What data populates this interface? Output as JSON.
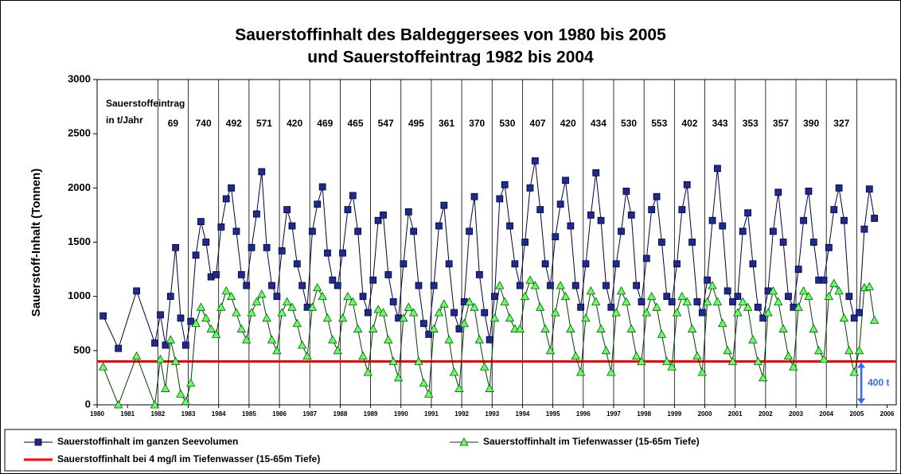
{
  "chart_data": {
    "type": "line",
    "title": [
      "Sauerstoffinhalt des Baldeggersees von 1980 bis 2005",
      "und Sauerstoffeintrag 1982 bis 2004"
    ],
    "ylabel": "Sauerstoff-Inhalt (Tonnen)",
    "xlim": [
      1980,
      2006.3
    ],
    "xticks": [
      1980,
      1981,
      1982,
      1983,
      1984,
      1985,
      1986,
      1987,
      1988,
      1989,
      1990,
      1991,
      1992,
      1993,
      1994,
      1995,
      1996,
      1997,
      1998,
      1999,
      2000,
      2001,
      2002,
      2003,
      2004,
      2005,
      2006
    ],
    "ylim": [
      0,
      3000
    ],
    "yticks": [
      0,
      500,
      1000,
      1500,
      2000,
      2500,
      3000
    ],
    "x": [
      1980.2,
      1980.7,
      1981.3,
      1981.9,
      1982.083,
      1982.25,
      1982.417,
      1982.583,
      1982.75,
      1982.917,
      1983.083,
      1983.25,
      1983.417,
      1983.583,
      1983.75,
      1983.917,
      1984.083,
      1984.25,
      1984.417,
      1984.583,
      1984.75,
      1984.917,
      1985.083,
      1985.25,
      1985.417,
      1985.583,
      1985.75,
      1985.917,
      1986.083,
      1986.25,
      1986.417,
      1986.583,
      1986.75,
      1986.917,
      1987.083,
      1987.25,
      1987.417,
      1987.583,
      1987.75,
      1987.917,
      1988.083,
      1988.25,
      1988.417,
      1988.583,
      1988.75,
      1988.917,
      1989.083,
      1989.25,
      1989.417,
      1989.583,
      1989.75,
      1989.917,
      1990.083,
      1990.25,
      1990.417,
      1990.583,
      1990.75,
      1990.917,
      1991.083,
      1991.25,
      1991.417,
      1991.583,
      1991.75,
      1991.917,
      1992.083,
      1992.25,
      1992.417,
      1992.583,
      1992.75,
      1992.917,
      1993.083,
      1993.25,
      1993.417,
      1993.583,
      1993.75,
      1993.917,
      1994.083,
      1994.25,
      1994.417,
      1994.583,
      1994.75,
      1994.917,
      1995.083,
      1995.25,
      1995.417,
      1995.583,
      1995.75,
      1995.917,
      1996.083,
      1996.25,
      1996.417,
      1996.583,
      1996.75,
      1996.917,
      1997.083,
      1997.25,
      1997.417,
      1997.583,
      1997.75,
      1997.917,
      1998.083,
      1998.25,
      1998.417,
      1998.583,
      1998.75,
      1998.917,
      1999.083,
      1999.25,
      1999.417,
      1999.583,
      1999.75,
      1999.917,
      2000.083,
      2000.25,
      2000.417,
      2000.583,
      2000.75,
      2000.917,
      2001.083,
      2001.25,
      2001.417,
      2001.583,
      2001.75,
      2001.917,
      2002.083,
      2002.25,
      2002.417,
      2002.583,
      2002.75,
      2002.917,
      2003.083,
      2003.25,
      2003.417,
      2003.583,
      2003.75,
      2003.917,
      2004.083,
      2004.25,
      2004.417,
      2004.583,
      2004.75,
      2004.917,
      2005.083,
      2005.25,
      2005.417,
      2005.583
    ],
    "series": [
      {
        "name": "Sauerstoffinhalt im ganzen Seevolumen",
        "color": "#1f2a8c",
        "line_color": "#000040",
        "marker": "square",
        "values": [
          820,
          520,
          1050,
          570,
          830,
          550,
          1000,
          1450,
          800,
          550,
          770,
          1380,
          1690,
          1500,
          1180,
          1200,
          1640,
          1900,
          2000,
          1600,
          1200,
          1100,
          1450,
          1760,
          2150,
          1450,
          1100,
          1000,
          1420,
          1800,
          1650,
          1300,
          1100,
          900,
          1600,
          1850,
          2010,
          1400,
          1150,
          1100,
          1400,
          1800,
          1930,
          1600,
          1000,
          850,
          1150,
          1700,
          1750,
          1200,
          950,
          800,
          1300,
          1780,
          1600,
          1100,
          750,
          650,
          1100,
          1650,
          1840,
          1300,
          850,
          700,
          950,
          1600,
          1920,
          1200,
          850,
          600,
          1000,
          1900,
          2030,
          1650,
          1300,
          1100,
          1500,
          2000,
          2250,
          1800,
          1300,
          1100,
          1550,
          1850,
          2070,
          1650,
          1100,
          900,
          1300,
          1750,
          2140,
          1700,
          1100,
          900,
          1300,
          1600,
          1970,
          1750,
          1100,
          950,
          1350,
          1800,
          1920,
          1500,
          1000,
          950,
          1300,
          1800,
          2030,
          1500,
          950,
          850,
          1150,
          1700,
          2180,
          1650,
          1050,
          950,
          1000,
          1600,
          1770,
          1300,
          900,
          800,
          1050,
          1600,
          1960,
          1500,
          1000,
          900,
          1250,
          1700,
          1970,
          1500,
          1150,
          1150,
          1450,
          1800,
          2000,
          1700,
          1000,
          800,
          850,
          1620,
          1990,
          1720
        ]
      },
      {
        "name": "Sauerstoffinhalt im Tiefenwasser (15-65m Tiefe)",
        "color": "#66ff66",
        "line_color": "#004000",
        "marker": "triangle",
        "values": [
          350,
          0,
          450,
          0,
          420,
          150,
          600,
          400,
          100,
          30,
          200,
          750,
          900,
          800,
          700,
          650,
          900,
          1050,
          1000,
          850,
          700,
          600,
          850,
          950,
          1020,
          800,
          600,
          500,
          850,
          950,
          900,
          750,
          550,
          450,
          900,
          1080,
          1000,
          800,
          600,
          500,
          800,
          1000,
          950,
          700,
          450,
          300,
          700,
          880,
          850,
          600,
          400,
          250,
          800,
          900,
          850,
          400,
          200,
          100,
          700,
          850,
          930,
          600,
          300,
          150,
          750,
          950,
          900,
          600,
          350,
          150,
          800,
          1100,
          950,
          800,
          700,
          700,
          1000,
          1150,
          1100,
          900,
          700,
          500,
          850,
          1100,
          1000,
          700,
          450,
          300,
          800,
          1050,
          950,
          700,
          500,
          300,
          850,
          1050,
          950,
          700,
          450,
          400,
          850,
          1000,
          900,
          650,
          400,
          350,
          850,
          1000,
          950,
          700,
          450,
          300,
          950,
          1100,
          950,
          750,
          500,
          400,
          850,
          950,
          900,
          600,
          400,
          250,
          850,
          1050,
          950,
          700,
          450,
          350,
          900,
          1050,
          1000,
          700,
          500,
          420,
          1000,
          1120,
          1050,
          800,
          500,
          300,
          500,
          1080,
          1090,
          780
        ]
      }
    ],
    "threshold": {
      "name": "Sauerstoffinhalt bei 4 mg/l im Tiefenwasser (15-65m Tiefe)",
      "color": "#ff0000",
      "value": 400,
      "label": "400 t"
    },
    "inputs": {
      "label": [
        "Sauerstoffeintrag",
        "in t/Jahr"
      ],
      "years": [
        1982,
        1983,
        1984,
        1985,
        1986,
        1987,
        1988,
        1989,
        1990,
        1991,
        1992,
        1993,
        1994,
        1995,
        1996,
        1997,
        1998,
        1999,
        2000,
        2001,
        2002,
        2003,
        2004
      ],
      "values": [
        69,
        740,
        492,
        571,
        420,
        469,
        465,
        547,
        495,
        361,
        370,
        530,
        407,
        420,
        434,
        530,
        553,
        402,
        343,
        353,
        357,
        390,
        327
      ]
    }
  }
}
